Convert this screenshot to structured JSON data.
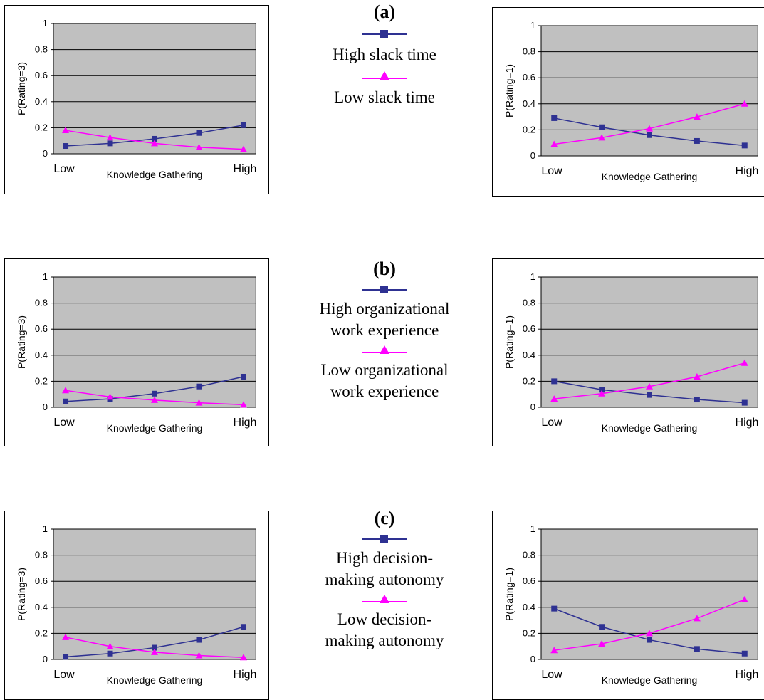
{
  "charts": [
    {
      "panel": "a",
      "legend_labels": [
        "High slack time",
        "Low slack time"
      ],
      "chart_data": [
        {
          "type": "line",
          "ylabel": "P(Rating=3)",
          "xlabel": "Knowledge Gathering",
          "x_tick_labels": [
            "Low",
            "High"
          ],
          "ylim": [
            0,
            1
          ],
          "y_ticks": [
            0,
            0.2,
            0.4,
            0.6,
            0.8,
            1
          ],
          "y_tick_labels": [
            "0",
            "0.2",
            "0.4",
            "0.6",
            "0.8",
            "1"
          ],
          "grid": true,
          "series": [
            {
              "name": "High slack time",
              "color": "#2E3192",
              "marker": "square",
              "values": [
                0.06,
                0.08,
                0.115,
                0.16,
                0.22
              ]
            },
            {
              "name": "Low slack time",
              "color": "#FF00FF",
              "marker": "triangle",
              "values": [
                0.18,
                0.125,
                0.08,
                0.05,
                0.035
              ]
            }
          ]
        },
        {
          "type": "line",
          "ylabel": "P(Rating=1)",
          "xlabel": "Knowledge Gathering",
          "x_tick_labels": [
            "Low",
            "High"
          ],
          "ylim": [
            0,
            1
          ],
          "y_ticks": [
            0,
            0.2,
            0.4,
            0.6,
            0.8,
            1
          ],
          "y_tick_labels": [
            "0",
            "0.2",
            "0.4",
            "0.6",
            "0.8",
            "1"
          ],
          "grid": true,
          "series": [
            {
              "name": "High slack time",
              "color": "#2E3192",
              "marker": "square",
              "values": [
                0.29,
                0.22,
                0.16,
                0.115,
                0.08
              ]
            },
            {
              "name": "Low slack time",
              "color": "#FF00FF",
              "marker": "triangle",
              "values": [
                0.09,
                0.14,
                0.21,
                0.3,
                0.4
              ]
            }
          ]
        }
      ]
    },
    {
      "panel": "b",
      "legend_labels": [
        "High organizational work experience",
        "Low organizational work experience"
      ],
      "chart_data": [
        {
          "type": "line",
          "ylabel": "P(Rating=3)",
          "xlabel": "Knowledge Gathering",
          "x_tick_labels": [
            "Low",
            "High"
          ],
          "ylim": [
            0,
            1
          ],
          "y_ticks": [
            0,
            0.2,
            0.4,
            0.6,
            0.8,
            1
          ],
          "y_tick_labels": [
            "0",
            "0.2",
            "0.4",
            "0.6",
            "0.8",
            "1"
          ],
          "grid": true,
          "series": [
            {
              "name": "High organizational work experience",
              "color": "#2E3192",
              "marker": "square",
              "values": [
                0.045,
                0.065,
                0.105,
                0.16,
                0.235
              ]
            },
            {
              "name": "Low organizational work experience",
              "color": "#FF00FF",
              "marker": "triangle",
              "values": [
                0.13,
                0.08,
                0.055,
                0.035,
                0.02
              ]
            }
          ]
        },
        {
          "type": "line",
          "ylabel": "P(Rating=1)",
          "xlabel": "Knowledge Gathering",
          "x_tick_labels": [
            "Low",
            "High"
          ],
          "ylim": [
            0,
            1
          ],
          "y_ticks": [
            0,
            0.2,
            0.4,
            0.6,
            0.8,
            1
          ],
          "y_tick_labels": [
            "0",
            "0.2",
            "0.4",
            "0.6",
            "0.8",
            "1"
          ],
          "grid": true,
          "series": [
            {
              "name": "High organizational work experience",
              "color": "#2E3192",
              "marker": "square",
              "values": [
                0.2,
                0.135,
                0.095,
                0.06,
                0.035
              ]
            },
            {
              "name": "Low organizational work experience",
              "color": "#FF00FF",
              "marker": "triangle",
              "values": [
                0.065,
                0.105,
                0.16,
                0.235,
                0.34
              ]
            }
          ]
        }
      ]
    },
    {
      "panel": "c",
      "legend_labels": [
        "High decision-making autonomy",
        "Low decision-making autonomy"
      ],
      "chart_data": [
        {
          "type": "line",
          "ylabel": "P(Rating=3)",
          "xlabel": "Knowledge Gathering",
          "x_tick_labels": [
            "Low",
            "High"
          ],
          "ylim": [
            0,
            1
          ],
          "y_ticks": [
            0,
            0.2,
            0.4,
            0.6,
            0.8,
            1
          ],
          "y_tick_labels": [
            "0",
            "0.2",
            "0.4",
            "0.6",
            "0.8",
            "1"
          ],
          "grid": true,
          "series": [
            {
              "name": "High decision-making autonomy",
              "color": "#2E3192",
              "marker": "square",
              "values": [
                0.02,
                0.045,
                0.09,
                0.15,
                0.25
              ]
            },
            {
              "name": "Low decision-making autonomy",
              "color": "#FF00FF",
              "marker": "triangle",
              "values": [
                0.17,
                0.1,
                0.055,
                0.03,
                0.015
              ]
            }
          ]
        },
        {
          "type": "line",
          "ylabel": "P(Rating=1)",
          "xlabel": "Knowledge Gathering",
          "x_tick_labels": [
            "Low",
            "High"
          ],
          "ylim": [
            0,
            1
          ],
          "y_ticks": [
            0,
            0.2,
            0.4,
            0.6,
            0.8,
            1
          ],
          "y_tick_labels": [
            "0",
            "0.2",
            "0.4",
            "0.6",
            "0.8",
            "1"
          ],
          "grid": true,
          "series": [
            {
              "name": "High decision-making autonomy",
              "color": "#2E3192",
              "marker": "square",
              "values": [
                0.39,
                0.25,
                0.15,
                0.08,
                0.045
              ]
            },
            {
              "name": "Low decision-making autonomy",
              "color": "#FF00FF",
              "marker": "triangle",
              "values": [
                0.07,
                0.12,
                0.2,
                0.315,
                0.46
              ]
            }
          ]
        }
      ]
    }
  ],
  "legend_text": {
    "a": {
      "letter": "(a)",
      "high_lines": [
        "High slack time"
      ],
      "low_lines": [
        "Low slack time"
      ]
    },
    "b": {
      "letter": "(b)",
      "high_lines": [
        "High organizational",
        "work experience"
      ],
      "low_lines": [
        "Low organizational",
        "work experience"
      ]
    },
    "c": {
      "letter": "(c)",
      "high_lines": [
        "High decision-",
        "making autonomy"
      ],
      "low_lines": [
        "Low decision-",
        "making autonomy"
      ]
    }
  }
}
